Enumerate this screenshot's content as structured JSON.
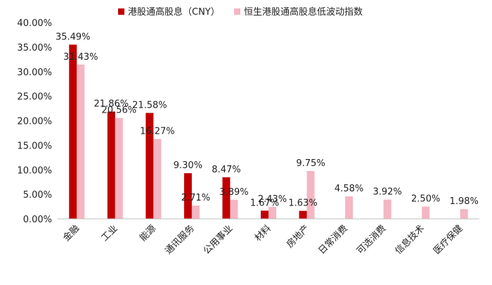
{
  "chart_data": {
    "type": "bar",
    "categories": [
      "金融",
      "工业",
      "能源",
      "通讯服务",
      "公用事业",
      "材料",
      "房地产",
      "日常消费",
      "可选消费",
      "信息技术",
      "医疗保健"
    ],
    "series": [
      {
        "name": "港股通高股息（CNY）",
        "color": "#c00000",
        "values": [
          35.49,
          21.86,
          21.58,
          9.3,
          8.47,
          1.67,
          1.63,
          null,
          null,
          null,
          null
        ],
        "labels": [
          "35.49%",
          "21.86%",
          "21.58%",
          "9.30%",
          "8.47%",
          "1.67%",
          "1.63%",
          null,
          null,
          null,
          null
        ]
      },
      {
        "name": "恒生港股通高股息低波动指数",
        "color": "#f4b6c2",
        "values": [
          31.43,
          20.56,
          16.27,
          2.71,
          3.89,
          2.43,
          9.75,
          4.58,
          3.92,
          2.5,
          1.98
        ],
        "labels": [
          "31.43%",
          "20.56%",
          "16.27%",
          "2.71%",
          "3.89%",
          "2.43%",
          "9.75%",
          "4.58%",
          "3.92%",
          "2.50%",
          "1.98%"
        ]
      }
    ],
    "ylim": [
      0,
      40
    ],
    "yticks": [
      "0.00%",
      "5.00%",
      "10.00%",
      "15.00%",
      "20.00%",
      "25.00%",
      "30.00%",
      "35.00%",
      "40.00%"
    ],
    "legend_position": "top",
    "grid": false
  }
}
